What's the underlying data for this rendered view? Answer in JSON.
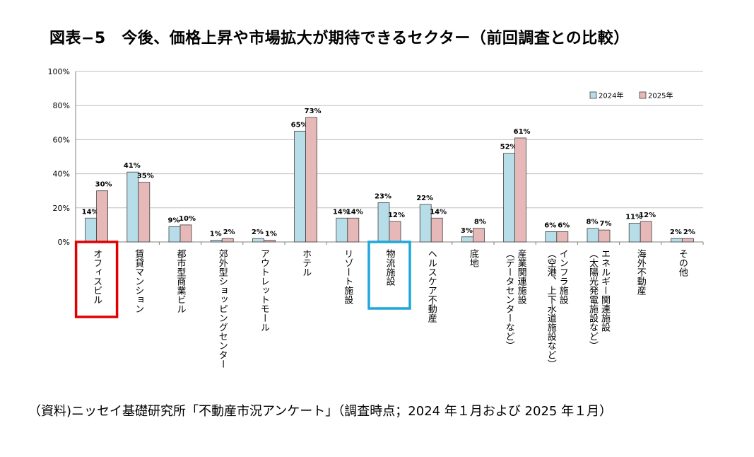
{
  "title": "図表−5　今後、価格上昇や市場拡大が期待できるセクター（前回調査との比較）",
  "source": "（資料)ニッセイ基礎研究所「不動産市況アンケート」（調査時点；2024 年１月および 2025 年１月）",
  "colors": {
    "s2024": "#b7dde8",
    "s2025": "#e6b9b8",
    "highlight_red": "#e00000",
    "highlight_blue": "#1fa7dc"
  },
  "chart_data": {
    "type": "bar",
    "ylim": [
      0,
      100
    ],
    "yticks": [
      "0%",
      "20%",
      "40%",
      "60%",
      "80%",
      "100%"
    ],
    "grid": true,
    "legend_position": "top-right",
    "categories": [
      [
        "オフィスビル"
      ],
      [
        "賃貸マンション"
      ],
      [
        "都市型商業ビル"
      ],
      [
        "郊外型ショッピングセンター"
      ],
      [
        "アウトレットモール"
      ],
      [
        "ホテル"
      ],
      [
        "リゾート施設"
      ],
      [
        "物流施設"
      ],
      [
        "ヘルスケア不動産"
      ],
      [
        "底地"
      ],
      [
        "産業関連施設",
        "（データセンターなど）"
      ],
      [
        "インフラ施設",
        "（空港、上下水道施設など）"
      ],
      [
        "エネルギー関連施設",
        "（太陽光発電施設など）"
      ],
      [
        "海外不動産"
      ],
      [
        "その他"
      ]
    ],
    "series": [
      {
        "name": "2024年",
        "values": [
          14,
          41,
          9,
          1,
          2,
          65,
          14,
          23,
          22,
          3,
          52,
          6,
          8,
          11,
          2
        ],
        "labels": [
          "14%",
          "41%",
          "9%",
          "1%",
          "2%",
          "65%",
          "14%",
          "23%",
          "22%",
          "3%",
          "52%",
          "6%",
          "8%",
          "11%",
          "2%"
        ]
      },
      {
        "name": "2025年",
        "values": [
          30,
          35,
          10,
          2,
          1,
          73,
          14,
          12,
          14,
          8,
          61,
          6,
          7,
          12,
          2
        ],
        "labels": [
          "30%",
          "35%",
          "10%",
          "2%",
          "1%",
          "73%",
          "14%",
          "12%",
          "14%",
          "8%",
          "61%",
          "6%",
          "7%",
          "12%",
          "2%"
        ]
      }
    ],
    "highlights": [
      {
        "category_index": 0,
        "color": "red"
      },
      {
        "category_index": 7,
        "color": "blue"
      }
    ]
  }
}
